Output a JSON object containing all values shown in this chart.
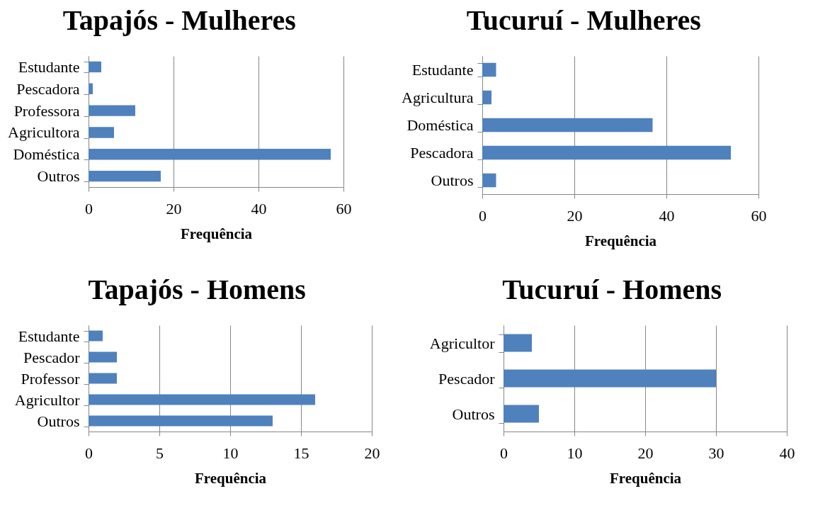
{
  "chart_data": [
    {
      "type": "bar",
      "orientation": "horizontal",
      "title": "Tapajós - Mulheres",
      "xlabel": "Frequência",
      "categories": [
        "Estudante",
        "Pescadora",
        "Professora",
        "Agricultora",
        "Doméstica",
        "Outros"
      ],
      "values": [
        3,
        1,
        11,
        6,
        57,
        17
      ],
      "color": "#4f81bd",
      "xlim": [
        0,
        60
      ],
      "xticks": [
        0,
        20,
        40,
        60
      ],
      "grid": "x"
    },
    {
      "type": "bar",
      "orientation": "horizontal",
      "title": "Tucuruí - Mulheres",
      "xlabel": "Frequência",
      "categories": [
        "Estudante",
        "Agricultura",
        "Doméstica",
        "Pescadora",
        "Outros"
      ],
      "values": [
        3,
        2,
        37,
        54,
        3
      ],
      "color": "#4f81bd",
      "xlim": [
        0,
        60
      ],
      "xticks": [
        0,
        20,
        40,
        60
      ],
      "grid": "x"
    },
    {
      "type": "bar",
      "orientation": "horizontal",
      "title": "Tapajós - Homens",
      "xlabel": "Frequência",
      "categories": [
        "Estudante",
        "Pescador",
        "Professor",
        "Agricultor",
        "Outros"
      ],
      "values": [
        1,
        2,
        2,
        16,
        13
      ],
      "color": "#4f81bd",
      "xlim": [
        0,
        20
      ],
      "xticks": [
        0,
        5,
        10,
        15,
        20
      ],
      "grid": "x"
    },
    {
      "type": "bar",
      "orientation": "horizontal",
      "title": "Tucuruí - Homens",
      "xlabel": "Frequência",
      "categories": [
        "Agricultor",
        "Pescador",
        "Outros"
      ],
      "values": [
        4,
        30,
        5
      ],
      "color": "#4f81bd",
      "xlim": [
        0,
        40
      ],
      "xticks": [
        0,
        10,
        20,
        30,
        40
      ],
      "grid": "x"
    }
  ]
}
